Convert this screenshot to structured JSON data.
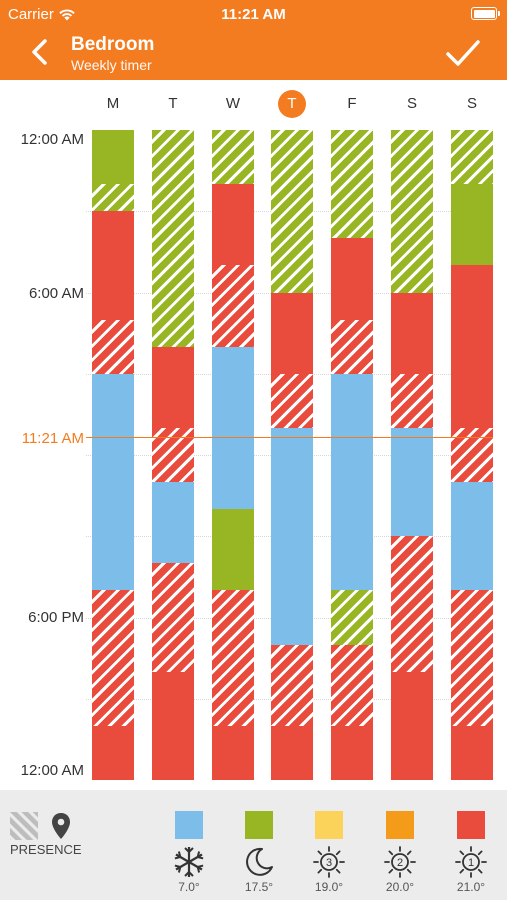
{
  "status_bar": {
    "carrier": "Carrier",
    "time": "11:21 AM"
  },
  "nav": {
    "title": "Bedroom",
    "subtitle": "Weekly timer"
  },
  "days": [
    {
      "label": "M",
      "today": false
    },
    {
      "label": "T",
      "today": false
    },
    {
      "label": "W",
      "today": false
    },
    {
      "label": "T",
      "today": true
    },
    {
      "label": "F",
      "today": false
    },
    {
      "label": "S",
      "today": false
    },
    {
      "label": "S",
      "today": false
    }
  ],
  "time_labels": {
    "start": "12:00 AM",
    "six_am": "6:00 AM",
    "now": "11:21 AM",
    "six_pm": "6:00 PM",
    "end": "12:00 AM"
  },
  "now_hours": 11.35,
  "modes": {
    "blue": "#7cbde9",
    "green": "#98b623",
    "red": "#e94b3c",
    "yellow": "#fcd35a",
    "orange": "#f49b1a",
    "accent": "#f47c20"
  },
  "schedule": [
    [
      {
        "from": 0,
        "to": 2,
        "mode": "green",
        "presence": false
      },
      {
        "from": 2,
        "to": 3,
        "mode": "green",
        "presence": true
      },
      {
        "from": 3,
        "to": 7,
        "mode": "red",
        "presence": false
      },
      {
        "from": 7,
        "to": 9,
        "mode": "red",
        "presence": true
      },
      {
        "from": 9,
        "to": 17,
        "mode": "blue",
        "presence": false
      },
      {
        "from": 17,
        "to": 22,
        "mode": "red",
        "presence": true
      },
      {
        "from": 22,
        "to": 24,
        "mode": "red",
        "presence": false
      }
    ],
    [
      {
        "from": 0,
        "to": 8,
        "mode": "green",
        "presence": true
      },
      {
        "from": 8,
        "to": 11,
        "mode": "red",
        "presence": false
      },
      {
        "from": 11,
        "to": 13,
        "mode": "red",
        "presence": true
      },
      {
        "from": 13,
        "to": 16,
        "mode": "blue",
        "presence": false
      },
      {
        "from": 16,
        "to": 20,
        "mode": "red",
        "presence": true
      },
      {
        "from": 20,
        "to": 24,
        "mode": "red",
        "presence": false
      }
    ],
    [
      {
        "from": 0,
        "to": 2,
        "mode": "green",
        "presence": true
      },
      {
        "from": 2,
        "to": 5,
        "mode": "red",
        "presence": false
      },
      {
        "from": 5,
        "to": 8,
        "mode": "red",
        "presence": true
      },
      {
        "from": 8,
        "to": 14,
        "mode": "blue",
        "presence": false
      },
      {
        "from": 14,
        "to": 17,
        "mode": "green",
        "presence": false
      },
      {
        "from": 17,
        "to": 22,
        "mode": "red",
        "presence": true
      },
      {
        "from": 22,
        "to": 24,
        "mode": "red",
        "presence": false
      }
    ],
    [
      {
        "from": 0,
        "to": 6,
        "mode": "green",
        "presence": true
      },
      {
        "from": 6,
        "to": 9,
        "mode": "red",
        "presence": false
      },
      {
        "from": 9,
        "to": 11,
        "mode": "red",
        "presence": true
      },
      {
        "from": 11,
        "to": 19,
        "mode": "blue",
        "presence": false
      },
      {
        "from": 19,
        "to": 22,
        "mode": "red",
        "presence": true
      },
      {
        "from": 22,
        "to": 24,
        "mode": "red",
        "presence": false
      }
    ],
    [
      {
        "from": 0,
        "to": 4,
        "mode": "green",
        "presence": true
      },
      {
        "from": 4,
        "to": 7,
        "mode": "red",
        "presence": false
      },
      {
        "from": 7,
        "to": 9,
        "mode": "red",
        "presence": true
      },
      {
        "from": 9,
        "to": 17,
        "mode": "blue",
        "presence": false
      },
      {
        "from": 17,
        "to": 19,
        "mode": "green",
        "presence": true
      },
      {
        "from": 19,
        "to": 22,
        "mode": "red",
        "presence": true
      },
      {
        "from": 22,
        "to": 24,
        "mode": "red",
        "presence": false
      }
    ],
    [
      {
        "from": 0,
        "to": 6,
        "mode": "green",
        "presence": true
      },
      {
        "from": 6,
        "to": 9,
        "mode": "red",
        "presence": false
      },
      {
        "from": 9,
        "to": 11,
        "mode": "red",
        "presence": true
      },
      {
        "from": 11,
        "to": 15,
        "mode": "blue",
        "presence": false
      },
      {
        "from": 15,
        "to": 20,
        "mode": "red",
        "presence": true
      },
      {
        "from": 20,
        "to": 24,
        "mode": "red",
        "presence": false
      }
    ],
    [
      {
        "from": 0,
        "to": 2,
        "mode": "green",
        "presence": true
      },
      {
        "from": 2,
        "to": 5,
        "mode": "green",
        "presence": false
      },
      {
        "from": 5,
        "to": 11,
        "mode": "red",
        "presence": false
      },
      {
        "from": 11,
        "to": 13,
        "mode": "red",
        "presence": true
      },
      {
        "from": 13,
        "to": 17,
        "mode": "blue",
        "presence": false
      },
      {
        "from": 17,
        "to": 22,
        "mode": "red",
        "presence": true
      },
      {
        "from": 22,
        "to": 24,
        "mode": "red",
        "presence": false
      }
    ]
  ],
  "legend": {
    "presence_label": "PRESENCE",
    "items": [
      {
        "color": "#7cbde9",
        "icon": "snowflake-icon",
        "temp": "7.0°"
      },
      {
        "color": "#98b623",
        "icon": "moon-icon",
        "temp": "17.5°"
      },
      {
        "color": "#fcd35a",
        "icon": "sun-3-icon",
        "badge": "3",
        "temp": "19.0°"
      },
      {
        "color": "#f49b1a",
        "icon": "sun-2-icon",
        "badge": "2",
        "temp": "20.0°"
      },
      {
        "color": "#e94b3c",
        "icon": "sun-1-icon",
        "badge": "1",
        "temp": "21.0°"
      }
    ]
  }
}
